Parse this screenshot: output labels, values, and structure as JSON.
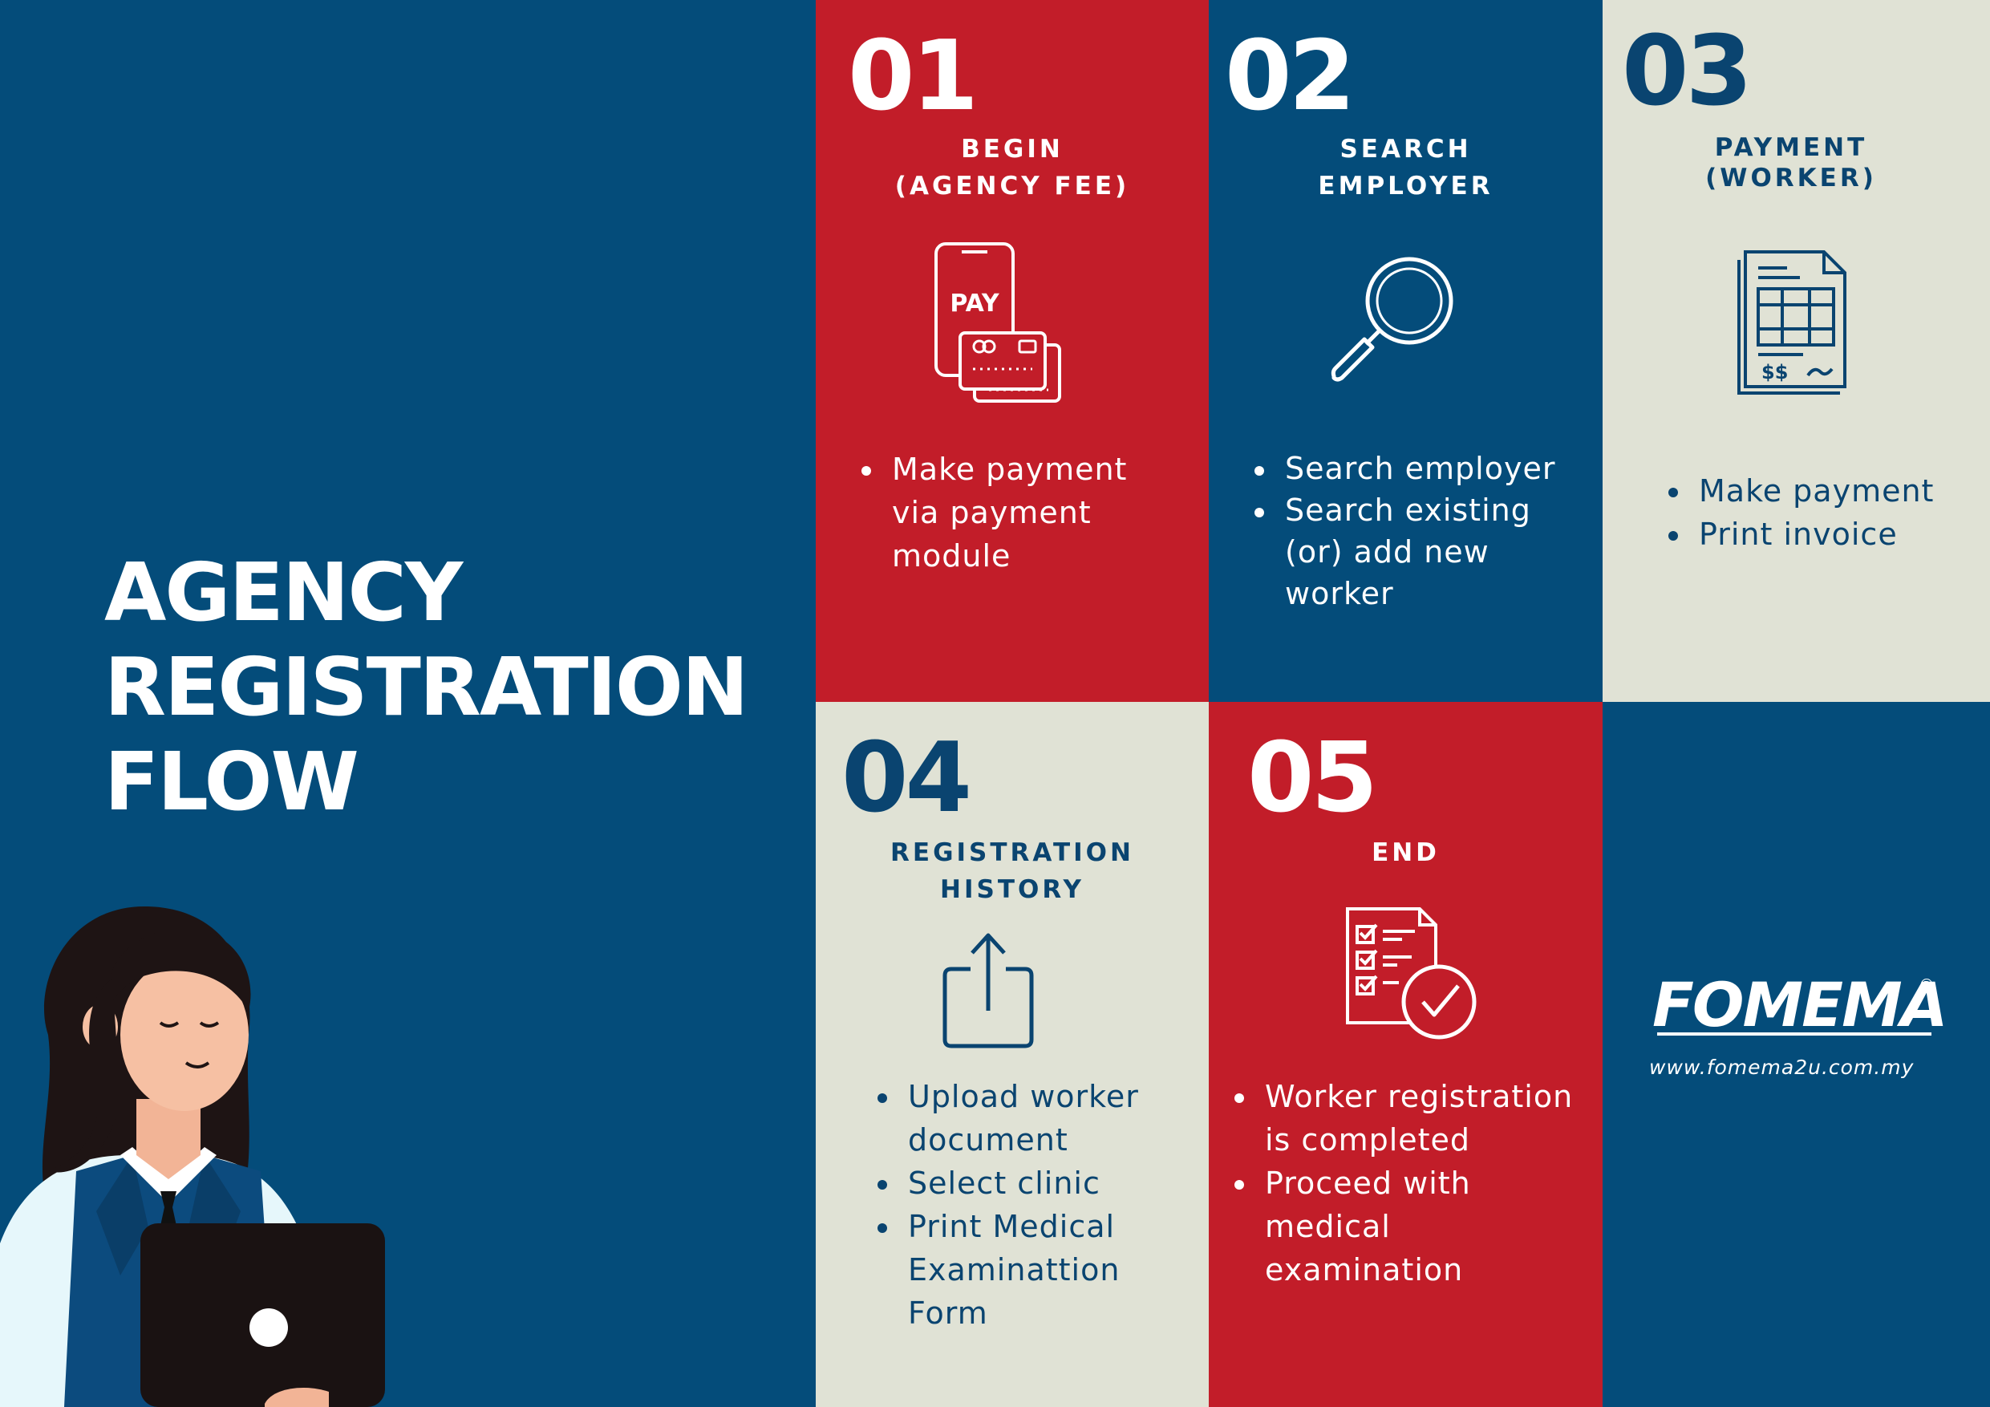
{
  "title": {
    "line1": "AGENCY",
    "line2": "REGISTRATION",
    "line3": "FLOW"
  },
  "steps": [
    {
      "number": "01",
      "title_line1": "BEGIN",
      "title_line2": "(AGENCY FEE)",
      "icon": "pay-phone-card-icon",
      "icon_text": "PAY",
      "items": [
        "Make payment",
        "via payment",
        "module"
      ]
    },
    {
      "number": "02",
      "title_line1": "SEARCH",
      "title_line2": "EMPLOYER",
      "icon": "magnifier-icon",
      "items": [
        "Search employer",
        "Search existing",
        "(or) add new",
        "worker"
      ]
    },
    {
      "number": "03",
      "title_line1": "PAYMENT",
      "title_line2": "(WORKER)",
      "icon": "invoice-icon",
      "icon_text": "$$",
      "items": [
        "Make payment",
        "Print invoice"
      ]
    },
    {
      "number": "04",
      "title_line1": "REGISTRATION",
      "title_line2": "HISTORY",
      "icon": "upload-icon",
      "items": [
        "Upload worker",
        "document",
        "Select clinic",
        "Print Medical",
        "Examinattion",
        "Form"
      ]
    },
    {
      "number": "05",
      "title_line1": "END",
      "icon": "checklist-icon",
      "items": [
        "Worker registration",
        "is completed",
        "Proceed with",
        "medical",
        "examination"
      ]
    }
  ],
  "brand": {
    "name": "FOMEMA",
    "registered": "®",
    "website": "www.fomema2u.com.my"
  },
  "colors": {
    "navy": "#044c7a",
    "red": "#c21d29",
    "beige": "#e0e2d5"
  }
}
